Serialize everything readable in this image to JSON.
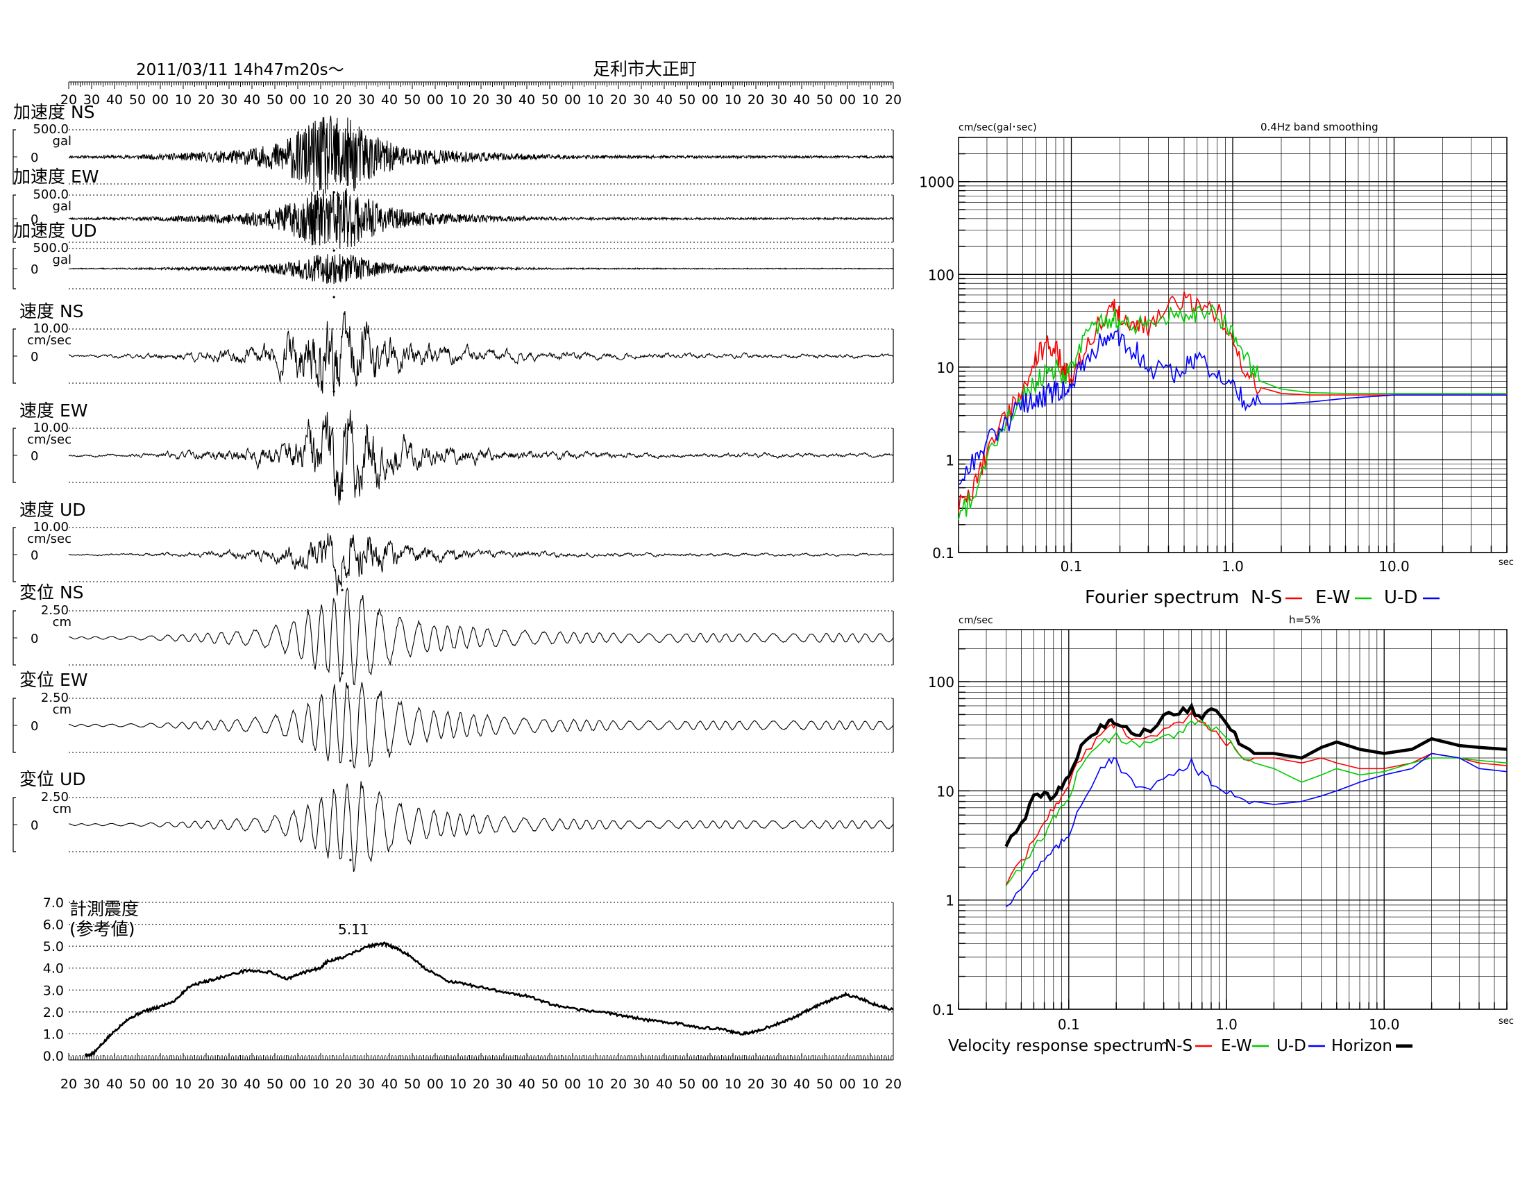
{
  "header": {
    "datetime": "2011/03/11  14h47m20s～",
    "station": "足利市大正町"
  },
  "time_ticks": [
    "20",
    "30",
    "40",
    "50",
    "00",
    "10",
    "20",
    "30",
    "40",
    "50",
    "00",
    "10",
    "20",
    "30",
    "40",
    "50",
    "00",
    "10",
    "20",
    "30",
    "40",
    "50",
    "00",
    "10",
    "20",
    "30",
    "40",
    "50",
    "00",
    "10",
    "20",
    "30",
    "40",
    "50",
    "00",
    "10",
    "20"
  ],
  "chart_data": [
    {
      "type": "line",
      "title": "",
      "description": "Seismic waveform traces (time series)",
      "x_ticks": [
        "20",
        "30",
        "40",
        "50",
        "00",
        "10",
        "20",
        "30",
        "40",
        "50",
        "00",
        "10",
        "20",
        "30",
        "40",
        "50",
        "00",
        "10",
        "20",
        "30",
        "40",
        "50",
        "00",
        "10",
        "20",
        "30",
        "40",
        "50",
        "00",
        "10",
        "20",
        "30",
        "40",
        "50",
        "00",
        "10",
        "20"
      ],
      "traces": [
        {
          "name": "加速度 NS",
          "scale": "500.0",
          "unit": "gal",
          "zero": "0",
          "amp": 0.9,
          "kind": "acc",
          "env_peak": 0.32,
          "seed": 11
        },
        {
          "name": "加速度 EW",
          "scale": "500.0",
          "unit": "gal",
          "zero": "0",
          "amp": 0.8,
          "kind": "acc",
          "env_peak": 0.32,
          "seed": 23
        },
        {
          "name": "加速度 UD",
          "scale": "500.0",
          "unit": "gal",
          "zero": "0",
          "amp": 0.45,
          "kind": "acc",
          "env_peak": 0.32,
          "seed": 37
        },
        {
          "name": "速度 NS",
          "scale": "10.00",
          "unit": "cm/sec",
          "zero": "0",
          "amp": 1.0,
          "kind": "vel",
          "env_peak": 0.32,
          "seed": 41
        },
        {
          "name": "速度 EW",
          "scale": "10.00",
          "unit": "cm/sec",
          "zero": "0",
          "amp": 1.0,
          "kind": "vel",
          "env_peak": 0.33,
          "seed": 53
        },
        {
          "name": "速度 UD",
          "scale": "10.00",
          "unit": "cm/sec",
          "zero": "0",
          "amp": 0.6,
          "kind": "vel",
          "env_peak": 0.33,
          "seed": 67
        },
        {
          "name": "変位 NS",
          "scale": "2.50",
          "unit": "cm",
          "zero": "0",
          "amp": 1.0,
          "kind": "dis",
          "env_peak": 0.33,
          "seed": 71
        },
        {
          "name": "変位 EW",
          "scale": "2.50",
          "unit": "cm",
          "zero": "0",
          "amp": 1.0,
          "kind": "dis",
          "env_peak": 0.34,
          "seed": 83
        },
        {
          "name": "変位 UD",
          "scale": "2.50",
          "unit": "cm",
          "zero": "0",
          "amp": 0.9,
          "kind": "dis",
          "env_peak": 0.34,
          "seed": 97
        }
      ]
    },
    {
      "type": "line",
      "title": "計測震度",
      "subtitle": "(参考値)",
      "peak_label": "5.11",
      "y_ticks": [
        "7.0",
        "6.0",
        "5.0",
        "4.0",
        "3.0",
        "2.0",
        "1.0",
        "0.0"
      ],
      "ylim": [
        0,
        7
      ],
      "x_frac": [
        0.0,
        0.01,
        0.03,
        0.05,
        0.07,
        0.09,
        0.11,
        0.13,
        0.15,
        0.17,
        0.2,
        0.23,
        0.25,
        0.27,
        0.29,
        0.3,
        0.32,
        0.35,
        0.37,
        0.385,
        0.4,
        0.42,
        0.45,
        0.48,
        0.52,
        0.55,
        0.58,
        0.61,
        0.64,
        0.67,
        0.7,
        0.73,
        0.76,
        0.79,
        0.81,
        0.83,
        0.86,
        0.88,
        0.9,
        0.92,
        0.94,
        0.96,
        0.98,
        1.0
      ],
      "values": [
        0.0,
        0.1,
        0.9,
        1.6,
        2.0,
        2.2,
        2.5,
        3.2,
        3.4,
        3.6,
        3.9,
        3.8,
        3.5,
        3.8,
        4.0,
        4.3,
        4.5,
        5.0,
        5.11,
        4.9,
        4.6,
        4.0,
        3.4,
        3.2,
        2.9,
        2.7,
        2.3,
        2.1,
        2.0,
        1.8,
        1.6,
        1.5,
        1.3,
        1.2,
        1.0,
        1.1,
        1.5,
        1.8,
        2.2,
        2.5,
        2.8,
        2.6,
        2.3,
        2.1
      ]
    },
    {
      "type": "line",
      "scale": "log-log",
      "title": "0.4Hz band smoothing",
      "ylabel": "cm/sec(gal･sec)",
      "xlabel": "sec",
      "caption": "Fourier spectrum",
      "legend": [
        "N-S",
        "E-W",
        "U-D"
      ],
      "x_ticks": [
        "0.1",
        "1.0",
        "10.0"
      ],
      "y_ticks": [
        "0.1",
        "1",
        "10",
        "100",
        "1000"
      ],
      "xlim": [
        0.02,
        50
      ],
      "ylim": [
        0.1,
        3000
      ],
      "x": [
        0.02,
        0.025,
        0.03,
        0.04,
        0.05,
        0.06,
        0.07,
        0.08,
        0.09,
        0.1,
        0.12,
        0.15,
        0.18,
        0.2,
        0.25,
        0.3,
        0.4,
        0.5,
        0.6,
        0.8,
        1.0,
        1.2,
        1.5,
        2.0,
        3.0,
        5.0,
        10.0,
        20.0,
        50.0
      ],
      "series": [
        {
          "name": "N-S",
          "color": "#ff0000",
          "values": [
            0.3,
            0.5,
            1.2,
            3.0,
            6.0,
            12.0,
            18.0,
            16.0,
            9.0,
            8.0,
            15.0,
            30.0,
            50.0,
            35.0,
            30.0,
            28.0,
            45.0,
            50.0,
            48.0,
            40.0,
            20.0,
            9.0,
            6.0,
            5.2,
            5.0,
            5.0,
            5.0,
            5.0,
            5.0
          ]
        },
        {
          "name": "E-W",
          "color": "#00cc00",
          "values": [
            0.25,
            0.4,
            1.0,
            2.5,
            5.0,
            7.0,
            9.0,
            10.0,
            8.0,
            9.0,
            20.0,
            30.0,
            35.0,
            32.0,
            28.0,
            30.0,
            35.0,
            38.0,
            40.0,
            38.0,
            25.0,
            12.0,
            7.0,
            5.8,
            5.3,
            5.2,
            5.2,
            5.2,
            5.2
          ]
        },
        {
          "name": "U-D",
          "color": "#0000ff",
          "values": [
            0.6,
            1.0,
            1.5,
            2.5,
            4.0,
            4.5,
            5.0,
            5.5,
            6.0,
            6.5,
            12.0,
            18.0,
            22.0,
            20.0,
            15.0,
            10.0,
            8.0,
            10.0,
            12.0,
            9.0,
            6.0,
            4.2,
            4.0,
            4.0,
            4.2,
            4.6,
            5.0,
            5.0,
            5.0
          ]
        }
      ]
    },
    {
      "type": "line",
      "scale": "log-log",
      "title": "h=5%",
      "ylabel": "cm/sec",
      "xlabel": "sec",
      "caption": "Velocity response spectrum",
      "legend": [
        "N-S",
        "E-W",
        "U-D",
        "Horizon"
      ],
      "x_ticks": [
        "0.1",
        "1.0",
        "10.0"
      ],
      "y_ticks": [
        "0.1",
        "1",
        "10",
        "100"
      ],
      "xlim": [
        0.02,
        60
      ],
      "ylim": [
        0.1,
        300
      ],
      "x": [
        0.04,
        0.05,
        0.06,
        0.07,
        0.08,
        0.09,
        0.1,
        0.12,
        0.15,
        0.18,
        0.2,
        0.25,
        0.3,
        0.4,
        0.5,
        0.6,
        0.7,
        0.8,
        1.0,
        1.2,
        1.5,
        2.0,
        3.0,
        4.0,
        5.0,
        7.0,
        10.0,
        15.0,
        20.0,
        30.0,
        40.0,
        60.0
      ],
      "series": [
        {
          "name": "N-S",
          "color": "#ff0000",
          "values": [
            1.4,
            2.2,
            3.5,
            5.0,
            7.0,
            9.0,
            12.0,
            20.0,
            30.0,
            38.0,
            40.0,
            30.0,
            28.0,
            35.0,
            42.0,
            48.0,
            40.0,
            38.0,
            28.0,
            22.0,
            20.0,
            20.0,
            18.0,
            20.0,
            18.0,
            16.0,
            16.0,
            18.0,
            22.0,
            20.0,
            18.0,
            17.0
          ]
        },
        {
          "name": "E-W",
          "color": "#00cc00",
          "values": [
            1.4,
            2.0,
            3.0,
            4.0,
            5.5,
            7.0,
            9.0,
            18.0,
            25.0,
            30.0,
            32.0,
            28.0,
            26.0,
            30.0,
            35.0,
            40.0,
            42.0,
            38.0,
            30.0,
            22.0,
            18.0,
            16.0,
            12.0,
            14.0,
            16.0,
            14.0,
            15.0,
            18.0,
            20.0,
            20.0,
            19.0,
            18.0
          ]
        },
        {
          "name": "U-D",
          "color": "#0000ff",
          "values": [
            0.9,
            1.3,
            1.8,
            2.3,
            2.8,
            3.3,
            4.0,
            8.0,
            14.0,
            20.0,
            18.0,
            12.0,
            10.0,
            12.0,
            16.0,
            18.0,
            14.0,
            12.0,
            10.0,
            9.0,
            8.0,
            7.5,
            8.0,
            9.0,
            10.0,
            12.0,
            14.0,
            16.0,
            22.0,
            20.0,
            16.0,
            15.0
          ]
        },
        {
          "name": "Horizon",
          "color": "#000000",
          "values": [
            3.2,
            5.0,
            9.0,
            9.0,
            8.5,
            11.0,
            14.0,
            24.0,
            36.0,
            42.0,
            44.0,
            36.0,
            34.0,
            46.0,
            52.0,
            55.0,
            50.0,
            60.0,
            40.0,
            28.0,
            22.0,
            22.0,
            20.0,
            25.0,
            28.0,
            24.0,
            22.0,
            24.0,
            30.0,
            26.0,
            25.0,
            24.0
          ]
        }
      ]
    }
  ]
}
